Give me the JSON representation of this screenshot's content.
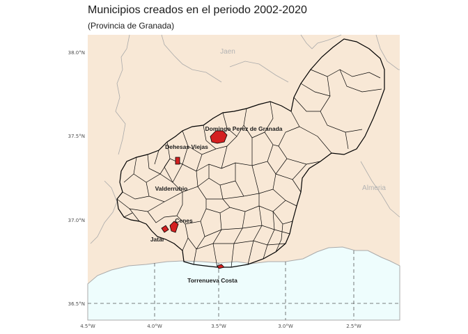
{
  "title": "Municipios creados en el periodo 2002-2020",
  "subtitle": "(Provincia de Granada)",
  "colors": {
    "land": "#f8e8d6",
    "sea": "#eefdfd",
    "highlight": "#d42020",
    "border": "#000000",
    "coast": "#aaaaaa",
    "grid": "#555555"
  },
  "map": {
    "x_ticks": [
      "4.5°W",
      "4.0°W",
      "3.5°W",
      "3.0°W",
      "2.5°W"
    ],
    "y_ticks": [
      "38.0°N",
      "37.5°N",
      "37.0°N",
      "36.5°N"
    ],
    "region_labels": {
      "jaen": "Jaen",
      "almeria": "Almeria"
    },
    "municipalities": [
      {
        "name": "Domingo Perez de Granada"
      },
      {
        "name": "Dehesas Viejas"
      },
      {
        "name": "Valderrubio"
      },
      {
        "name": "Cenes"
      },
      {
        "name": "Jatar"
      },
      {
        "name": "Torrenueva Costa"
      }
    ]
  }
}
